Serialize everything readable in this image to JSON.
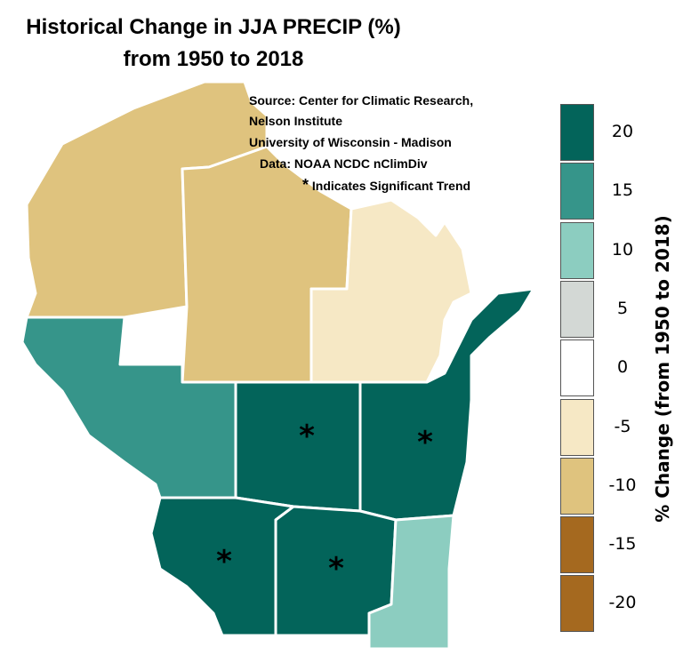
{
  "title": {
    "line1": "Historical Change in JJA PRECIP (%)",
    "line2": "from 1950 to 2018"
  },
  "source": {
    "line1": "Source:  Center for Climatic Research,",
    "line2": "Nelson Institute",
    "line3": "University of Wisconsin - Madison",
    "line4": "Data: NOAA NCDC nClimDiv",
    "line5": "Indicates Significant Trend",
    "star": "*"
  },
  "legend": {
    "title": "% Change (from 1950 to 2018)",
    "items": [
      {
        "label": "20",
        "color": "#03645a"
      },
      {
        "label": "15",
        "color": "#36958a"
      },
      {
        "label": "10",
        "color": "#8ccdc0"
      },
      {
        "label": "5",
        "color": "#d3d8d5"
      },
      {
        "label": "0",
        "color": "#ffffff"
      },
      {
        "label": "-5",
        "color": "#f6e8c5"
      },
      {
        "label": "-10",
        "color": "#dfc37e"
      },
      {
        "label": "-15",
        "color": "#a5691f"
      },
      {
        "label": "-20",
        "color": "#a5691f"
      }
    ]
  },
  "divisions": [
    {
      "name": "Northwest",
      "class": "-10",
      "significant": false
    },
    {
      "name": "North Central",
      "class": "-10",
      "significant": false
    },
    {
      "name": "Northeast",
      "class": "-5",
      "significant": false
    },
    {
      "name": "West Central",
      "class": "15",
      "significant": false
    },
    {
      "name": "Central",
      "class": "20",
      "significant": true
    },
    {
      "name": "East Central",
      "class": "20",
      "significant": true
    },
    {
      "name": "Southwest",
      "class": "20",
      "significant": true
    },
    {
      "name": "South Central",
      "class": "20",
      "significant": true
    },
    {
      "name": "Southeast",
      "class": "10",
      "significant": false
    }
  ]
}
